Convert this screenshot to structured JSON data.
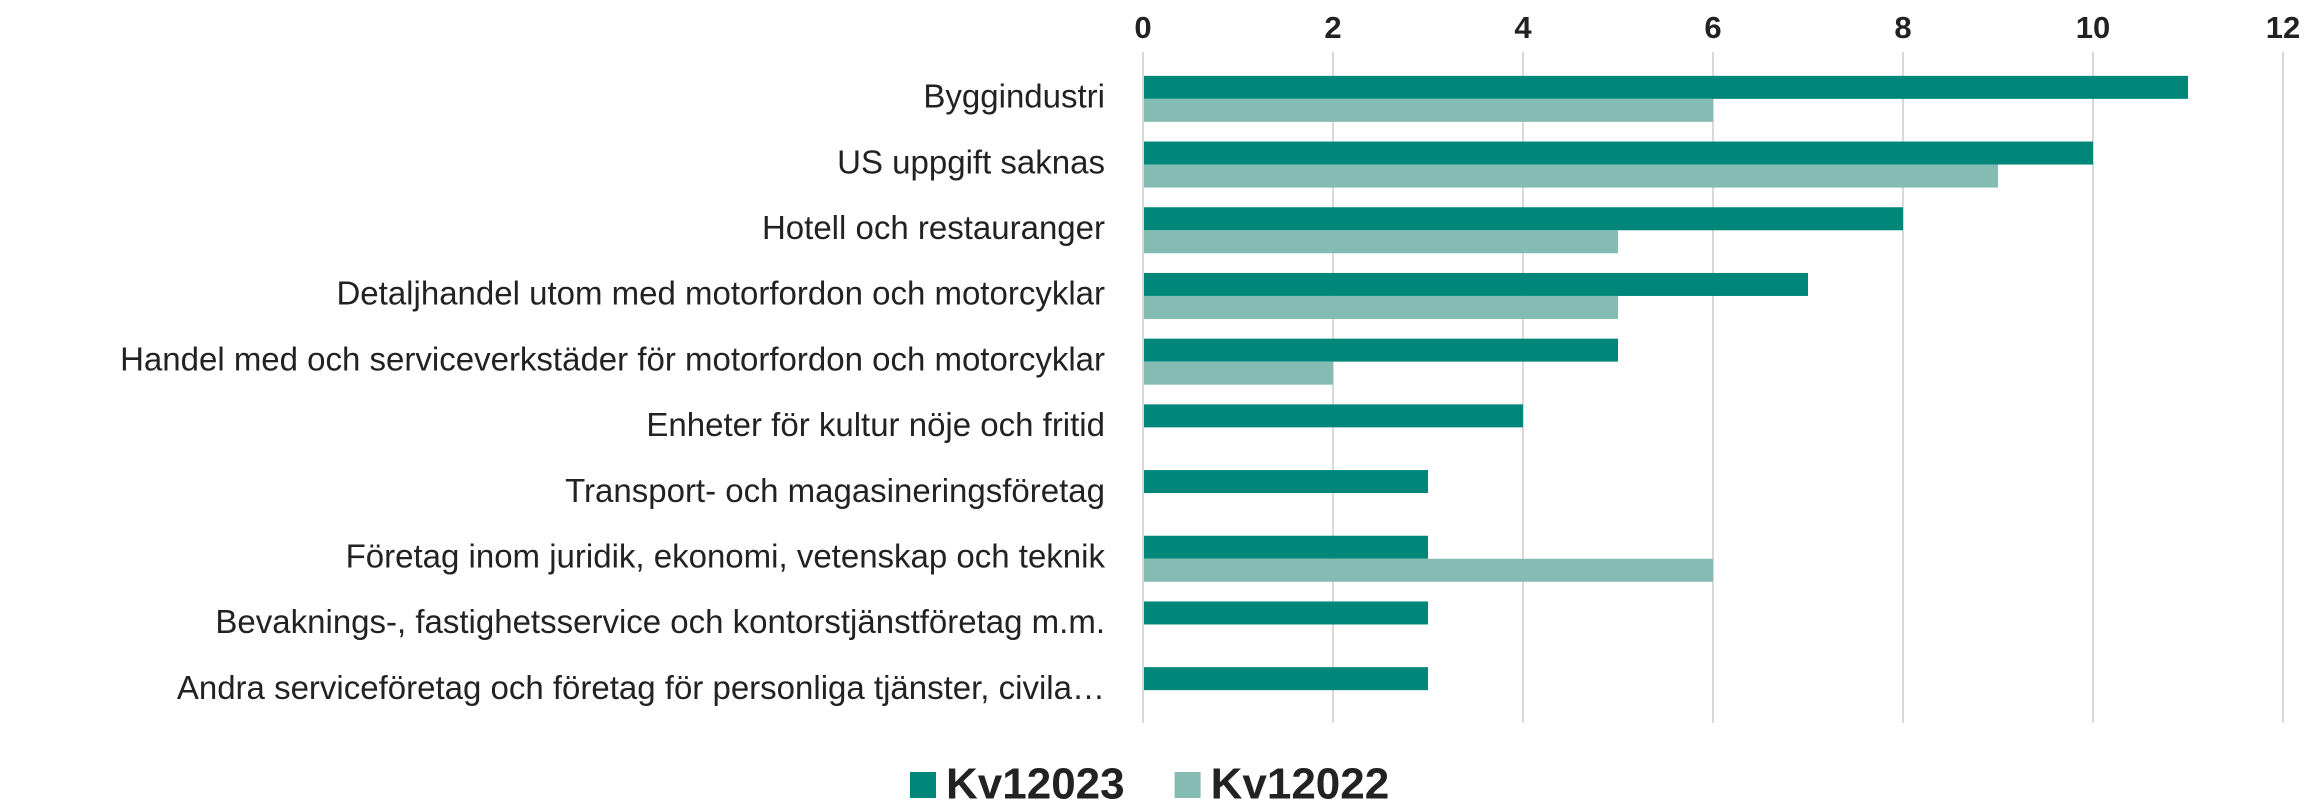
{
  "chart_data": {
    "type": "barh",
    "categories": [
      "Byggindustri",
      "US uppgift saknas",
      "Hotell och restauranger",
      "Detaljhandel utom med motorfordon och motorcyklar",
      "Handel med och serviceverkstäder för motorfordon och motorcyklar",
      "Enheter för kultur nöje och fritid",
      "Transport- och magasineringsföretag",
      "Företag inom juridik, ekonomi, vetenskap och teknik",
      "Bevaknings-, fastighetsservice och kontorstjänstföretag m.m.",
      "Andra serviceföretag och företag för personliga tjänster, civila…"
    ],
    "series": [
      {
        "name": "Kv12023",
        "color": "#00877a",
        "values": [
          11,
          10,
          8,
          7,
          5,
          4,
          3,
          3,
          3,
          3
        ]
      },
      {
        "name": "Kv12022",
        "color": "#84bbb3",
        "values": [
          6,
          9,
          5,
          5,
          2,
          0,
          0,
          6,
          0,
          0
        ]
      }
    ],
    "xlim": [
      0,
      12
    ],
    "xticks": [
      0,
      2,
      4,
      6,
      8,
      10,
      12
    ],
    "grid": true,
    "legend": "bottom"
  }
}
